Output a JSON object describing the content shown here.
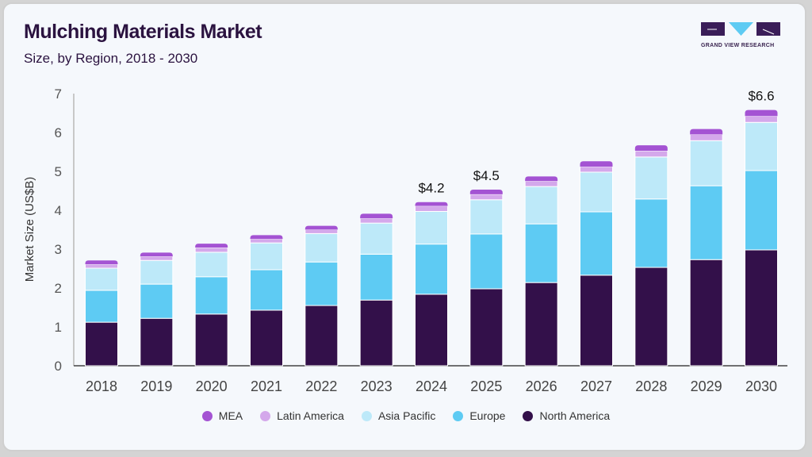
{
  "title": "Mulching Materials Market",
  "subtitle": "Size, by Region, 2018 - 2030",
  "logo": {
    "text": "GRAND VIEW RESEARCH"
  },
  "chart_data": {
    "type": "bar",
    "stacked": true,
    "title": "Mulching Materials Market",
    "subtitle": "Size, by Region, 2018 - 2030",
    "xlabel": "",
    "ylabel": "Market Size (US$B)",
    "ylim": [
      0,
      7
    ],
    "yticks": [
      "0",
      "1",
      "2",
      "3",
      "4",
      "5",
      "6",
      "7"
    ],
    "grid": false,
    "legend_position": "bottom",
    "categories": [
      "2018",
      "2019",
      "2020",
      "2021",
      "2022",
      "2023",
      "2024",
      "2025",
      "2026",
      "2027",
      "2028",
      "2029",
      "2030"
    ],
    "series": [
      {
        "name": "North America",
        "color": "#33104a",
        "values": [
          1.12,
          1.22,
          1.33,
          1.43,
          1.55,
          1.69,
          1.84,
          1.98,
          2.14,
          2.33,
          2.53,
          2.73,
          2.98
        ]
      },
      {
        "name": "Europe",
        "color": "#5ecbf3",
        "values": [
          0.82,
          0.88,
          0.96,
          1.04,
          1.12,
          1.18,
          1.29,
          1.41,
          1.51,
          1.63,
          1.76,
          1.9,
          2.04
        ]
      },
      {
        "name": "Asia Pacific",
        "color": "#bde9f9",
        "values": [
          0.57,
          0.61,
          0.63,
          0.69,
          0.73,
          0.8,
          0.84,
          0.88,
          0.96,
          1.02,
          1.08,
          1.16,
          1.24
        ]
      },
      {
        "name": "Latin America",
        "color": "#d4a8eb",
        "values": [
          0.1,
          0.1,
          0.12,
          0.1,
          0.1,
          0.12,
          0.14,
          0.14,
          0.14,
          0.14,
          0.16,
          0.16,
          0.16
        ]
      },
      {
        "name": "MEA",
        "color": "#a453d3",
        "values": [
          0.1,
          0.1,
          0.1,
          0.1,
          0.1,
          0.12,
          0.1,
          0.12,
          0.12,
          0.14,
          0.14,
          0.14,
          0.16
        ]
      }
    ],
    "annotations": [
      {
        "category": "2024",
        "label": "$4.2"
      },
      {
        "category": "2025",
        "label": "$4.5"
      },
      {
        "category": "2030",
        "label": "$6.6"
      }
    ],
    "legend_order": [
      "MEA",
      "Latin America",
      "Asia Pacific",
      "Europe",
      "North America"
    ]
  }
}
